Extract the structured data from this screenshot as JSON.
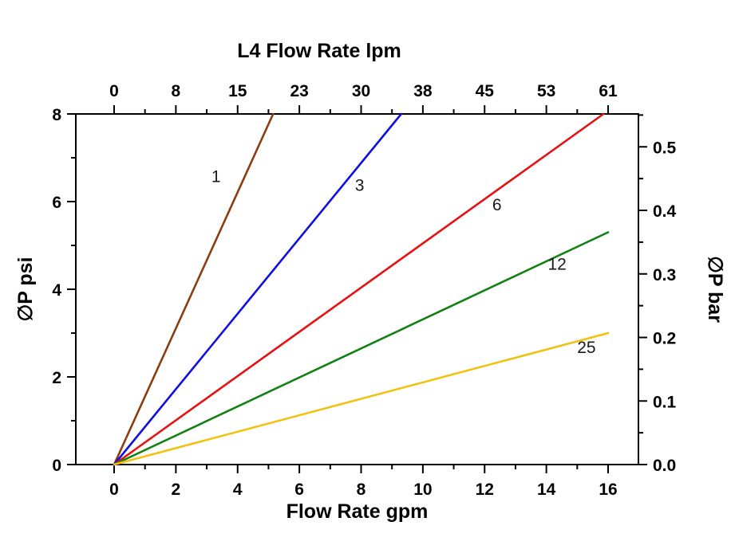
{
  "chart_data": {
    "type": "line",
    "title_top": "L4  Flow Rate lpm",
    "xlabel_bottom": "Flow Rate gpm",
    "ylabel_left": "∅P psi",
    "ylabel_right": "∅P bar",
    "x_axis_bottom": {
      "unit": "gpm",
      "range": [
        0,
        16
      ],
      "ticks": [
        0,
        2,
        4,
        6,
        8,
        10,
        12,
        14,
        16
      ],
      "minor_ticks": [
        1,
        3,
        5,
        7,
        9,
        11,
        13,
        15
      ]
    },
    "x_axis_top": {
      "unit": "lpm",
      "tick_labels": [
        "0",
        "8",
        "15",
        "23",
        "30",
        "38",
        "45",
        "53",
        "61"
      ],
      "tick_positions_gpm": [
        0,
        2,
        4,
        6,
        8,
        10,
        12,
        14,
        16
      ],
      "minor_tick_positions_gpm": [
        1,
        3,
        5,
        7,
        9,
        11,
        13,
        15
      ]
    },
    "y_axis_left": {
      "unit": "psi",
      "range": [
        0,
        8
      ],
      "ticks": [
        0,
        2,
        4,
        6,
        8
      ],
      "minor_ticks": [
        1,
        3,
        5,
        7
      ]
    },
    "y_axis_right": {
      "unit": "bar",
      "ticks": [
        0.0,
        0.1,
        0.2,
        0.3,
        0.4,
        0.5
      ],
      "minor_tick_step": 0.05,
      "psi_per_bar": 14.5
    },
    "grid": false,
    "legend": "inline-labels",
    "series": [
      {
        "name": "1",
        "color": "#8a3d10",
        "points": [
          [
            0,
            0
          ],
          [
            5.15,
            8
          ]
        ],
        "label": {
          "text": "1",
          "x": 3.3,
          "y": 6.45
        }
      },
      {
        "name": "3",
        "color": "#0f0fe0",
        "points": [
          [
            0,
            0
          ],
          [
            9.3,
            8
          ]
        ],
        "label": {
          "text": "3",
          "x": 7.95,
          "y": 6.25
        }
      },
      {
        "name": "6",
        "color": "#e51212",
        "points": [
          [
            0,
            0
          ],
          [
            15.85,
            8
          ]
        ],
        "label": {
          "text": "6",
          "x": 12.4,
          "y": 5.8
        }
      },
      {
        "name": "12",
        "color": "#128012",
        "points": [
          [
            0,
            0
          ],
          [
            16,
            5.3
          ]
        ],
        "label": {
          "text": "12",
          "x": 14.35,
          "y": 4.45
        }
      },
      {
        "name": "25",
        "color": "#f2c211",
        "points": [
          [
            0,
            0
          ],
          [
            16,
            3.0
          ]
        ],
        "label": {
          "text": "25",
          "x": 15.3,
          "y": 2.55
        }
      }
    ]
  }
}
